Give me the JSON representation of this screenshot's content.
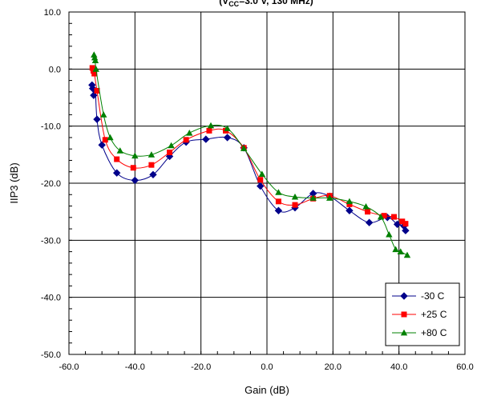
{
  "chart_data": {
    "type": "line",
    "title": "(V",
    "title_sub": "CC",
    "title_rest": "=3.0 V, 130 MHz)",
    "xlabel": "Gain (dB)",
    "ylabel": "IIP3 (dB)",
    "xlim": [
      -60,
      60
    ],
    "ylim": [
      -50,
      10
    ],
    "xticks": [
      -60,
      -40,
      -20,
      0,
      20,
      40,
      60
    ],
    "yticks": [
      -50,
      -40,
      -30,
      -20,
      -10,
      0,
      10
    ],
    "xtick_labels": [
      "-60.0",
      "-40.0",
      "-20.0",
      "0.0",
      "20.0",
      "40.0",
      "60.0"
    ],
    "ytick_labels": [
      "-50.0",
      "-40.0",
      "-30.0",
      "-20.0",
      "-10.0",
      "0.0",
      "10.0"
    ],
    "grid": true,
    "legend_position": "bottom-right",
    "series": [
      {
        "name": "-30 C",
        "color": "#00008B",
        "marker": "diamond",
        "x": [
          -53.0,
          -52.8,
          -52.5,
          -52.0,
          -51.5,
          -50.0,
          -45.5,
          -40.0,
          -34.5,
          -29.5,
          -24.5,
          -18.5,
          -12.0,
          -7.0,
          -2.0,
          3.5,
          8.5,
          14.0,
          19.0,
          25.0,
          31.0,
          36.5,
          39.5,
          41.5,
          42.0
        ],
        "y": [
          -2.8,
          -3.4,
          -4.6,
          -3.8,
          -8.8,
          -13.3,
          -18.2,
          -19.5,
          -18.5,
          -15.3,
          -12.8,
          -12.3,
          -12.0,
          -13.8,
          -20.5,
          -24.8,
          -24.3,
          -21.8,
          -22.3,
          -24.8,
          -26.9,
          -26.0,
          -27.2,
          -27.5,
          -28.3
        ]
      },
      {
        "name": "+25 C",
        "color": "#FF0000",
        "marker": "square",
        "x": [
          -52.9,
          -52.6,
          -52.3,
          -51.5,
          -49.0,
          -45.5,
          -40.5,
          -35.0,
          -29.5,
          -24.5,
          -17.5,
          -12.5,
          -7.0,
          -2.0,
          3.5,
          8.5,
          14.0,
          19.0,
          25.0,
          30.5,
          35.5,
          38.5,
          41.0,
          42.0
        ],
        "y": [
          0.2,
          -0.3,
          -0.8,
          -3.8,
          -12.4,
          -15.8,
          -17.3,
          -16.8,
          -14.6,
          -12.4,
          -10.8,
          -10.8,
          -13.8,
          -19.4,
          -23.2,
          -23.8,
          -22.7,
          -22.2,
          -23.7,
          -25.0,
          -25.7,
          -25.9,
          -26.7,
          -27.1
        ]
      },
      {
        "name": "+80 C",
        "color": "#008000",
        "marker": "triangle",
        "x": [
          -52.4,
          -52.2,
          -52.0,
          -51.8,
          -49.5,
          -47.5,
          -44.5,
          -40.0,
          -35.0,
          -29.0,
          -23.5,
          -17.0,
          -12.0,
          -7.0,
          -1.5,
          3.5,
          8.5,
          14.0,
          19.0,
          25.0,
          30.0,
          34.5,
          37.0,
          39.0,
          40.5,
          42.5
        ],
        "y": [
          2.5,
          2.0,
          1.5,
          0.0,
          -8.0,
          -12.0,
          -14.3,
          -15.2,
          -15.0,
          -13.4,
          -11.2,
          -9.9,
          -10.4,
          -13.9,
          -18.4,
          -21.6,
          -22.4,
          -22.6,
          -22.6,
          -23.2,
          -24.1,
          -25.9,
          -29.0,
          -31.6,
          -32.0,
          -32.6
        ]
      }
    ]
  }
}
